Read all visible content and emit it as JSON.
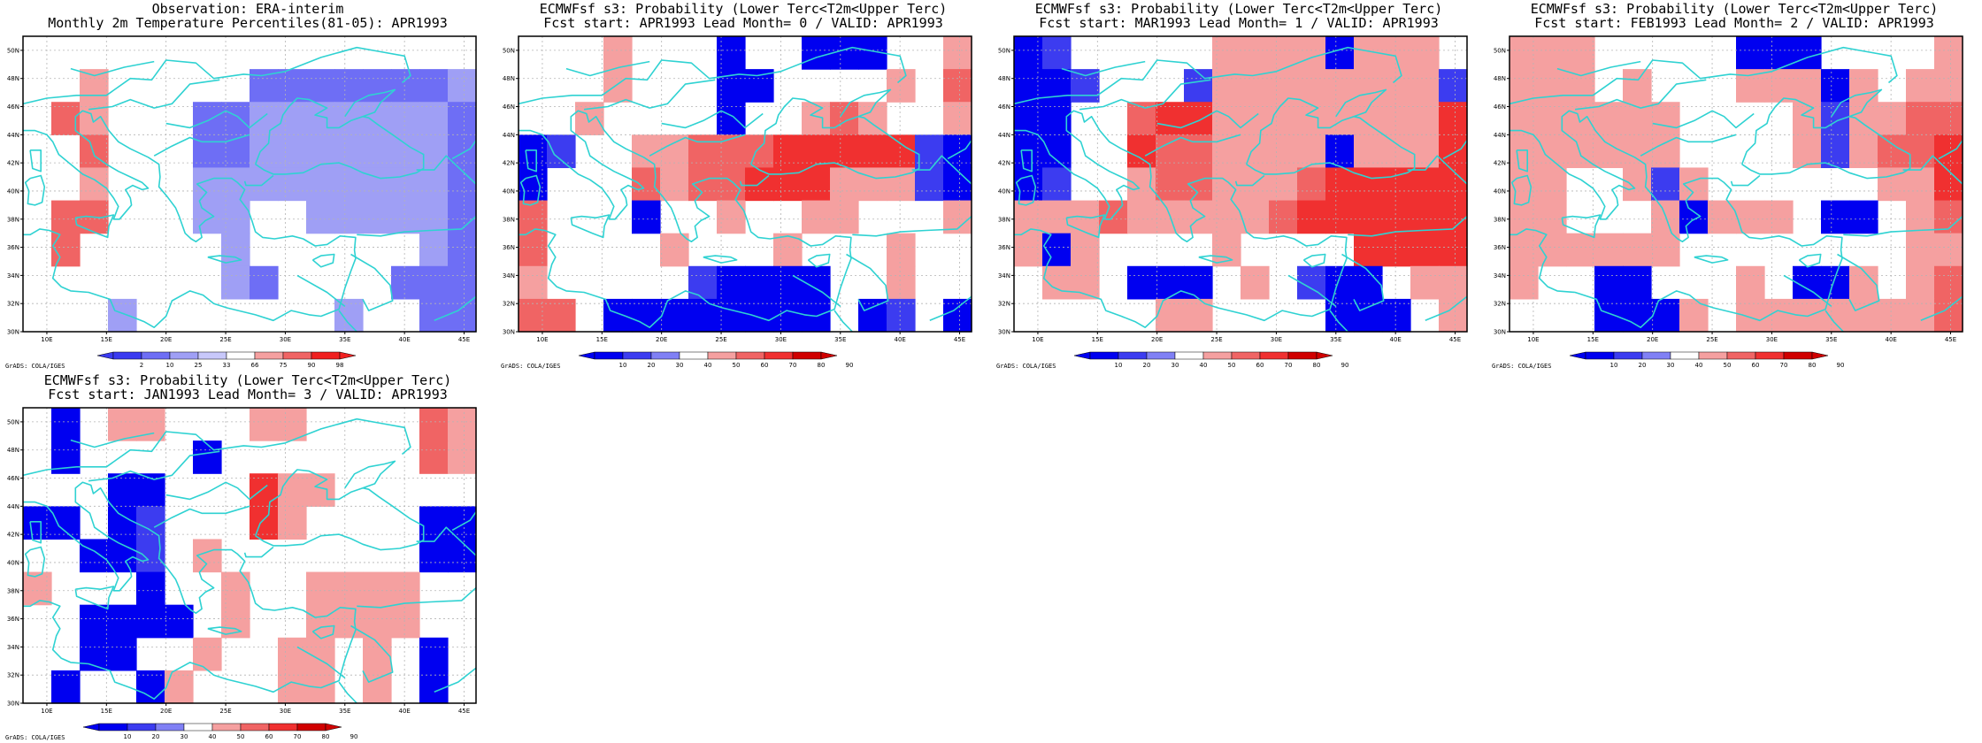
{
  "geo": {
    "lon_range": [
      8,
      46
    ],
    "lat_range": [
      30,
      51
    ],
    "lon_ticks": [
      "10E",
      "15E",
      "20E",
      "25E",
      "30E",
      "35E",
      "40E",
      "45E"
    ],
    "lat_ticks": [
      "30N",
      "32N",
      "34N",
      "36N",
      "38N",
      "40N",
      "42N",
      "44N",
      "46N",
      "48N",
      "50N"
    ],
    "cell_deg": 2.5,
    "cols": 16,
    "rows": 9
  },
  "colors": {
    "coast": "#2fd2d2",
    "grid_line": "#b4b4b4",
    "obs_scale": [
      "#3a3af0",
      "#6e6ef5",
      "#9f9ff5",
      "#c8c8fa",
      "#ffffff",
      "#f5a0a0",
      "#f06464",
      "#f02020"
    ],
    "prob_scale": [
      "#0000f0",
      "#3c3cf0",
      "#8080f5",
      "#ffffff",
      "#f5a0a0",
      "#f06464",
      "#f03030",
      "#d00000"
    ]
  },
  "panels": [
    {
      "title1": "Observation: ERA-interim",
      "title2": "Monthly 2m Temperature Percentiles(81-05): APR1993",
      "colorbar_labels": [
        "2",
        "10",
        "25",
        "33",
        "66",
        "75",
        "90",
        "98"
      ],
      "scale": "obs",
      "grads_label": "GrADS: COLA/IGES",
      "grid": [
        "EE..............",
        "EEF.....BBBBBBBC",
        "EGF...BBCCCCCCCB",
        "..G...BBCCCCCCCB",
        "..F...CCCCCCCCCB",
        ".GG...CC..CCCCCB",
        ".G.....C......CB",
        ".......CB....BBB",
        "...C.......C..BB"
      ]
    },
    {
      "title1": "ECMWFsf s3: Probability (Lower Terc<T2m<Upper Terc)",
      "title2": "Fcst start: APR1993   Lead Month= 0 / VALID: APR1993",
      "colorbar_labels": [
        "10",
        "20",
        "30",
        "40",
        "50",
        "60",
        "70",
        "80",
        "90"
      ],
      "scale": "prob",
      "grads_label": "GrADS: COLA/IGES",
      "grid": [
        "...E...A..AAA..E",
        "...E...AA....E.F",
        "..E....A..EFE..E",
        "AB..EEFFFGGGGGBA",
        "A...FEFFGGGEEEBA",
        "F...A..E..EE...E",
        "F....E...E...E..",
        "E.....BAAAA..E..",
        "FF.AAAAAAAA.AB.A"
      ]
    },
    {
      "title1": "ECMWFsf s3: Probability (Lower Terc<T2m<Upper Terc)",
      "title2": "Fcst start: MAR1993   Lead Month= 1 / VALID: APR1993",
      "colorbar_labels": [
        "10",
        "20",
        "30",
        "40",
        "50",
        "60",
        "70",
        "80",
        "90"
      ],
      "scale": "prob",
      "grads_label": "GrADS: COLA/IGES",
      "grid": [
        "AB.....EEEEAEEE.",
        "AAB...BEEEEEEEEB",
        "AA..FGGEEEEEEEEG",
        "AA..GFFEEEEAEEEG",
        "AB..EFFEEEFGGGGG",
        "EEEFEEEEEFGGGGGG",
        "EAE....E....GGGG",
        ".EE.AAA.E.BAA.EE",
        ".....EE....AAA.E"
      ]
    },
    {
      "title1": "ECMWFsf s3: Probability (Lower Terc<T2m<Upper Terc)",
      "title2": "Fcst start: FEB1993   Lead Month= 2 / VALID: APR1993",
      "colorbar_labels": [
        "10",
        "20",
        "30",
        "40",
        "50",
        "60",
        "70",
        "80",
        "90"
      ],
      "scale": "prob",
      "grads_label": "GrADS: COLA/IGES",
      "grid": [
        "EEE.....AAA....E",
        "EEE.E...EEEAE.EE",
        "EEEEEE....EBEEFF",
        "EEEEEE....EBEFFG",
        "EE..EBE......EEG",
        "EE...EAEEE.AA.EF",
        "EEEEEE........EE",
        "E..AA...E.AAE.EF",
        "...AAAE.EEEEEEEF"
      ]
    },
    {
      "title1": "ECMWFsf s3: Probability (Lower Terc<T2m<Upper Terc)",
      "title2": "Fcst start: JAN1993   Lead Month= 3 / VALID: APR1993",
      "colorbar_labels": [
        "10",
        "20",
        "30",
        "40",
        "50",
        "60",
        "70",
        "80",
        "90"
      ],
      "scale": "prob",
      "grads_label": "GrADS: COLA/IGES",
      "grid": [
        ".A.EE...EE....FE",
        ".A....A.......FE",
        "...AA...GEE.....",
        "AA.AB...GE....AA",
        "..AAB.E.......AA",
        "E...A..E..EEEE..",
        "..AAAA.E..EEEE..",
        "..AA..E..EE.E.A.",
        ".A..AE...EE.E.A."
      ]
    }
  ]
}
